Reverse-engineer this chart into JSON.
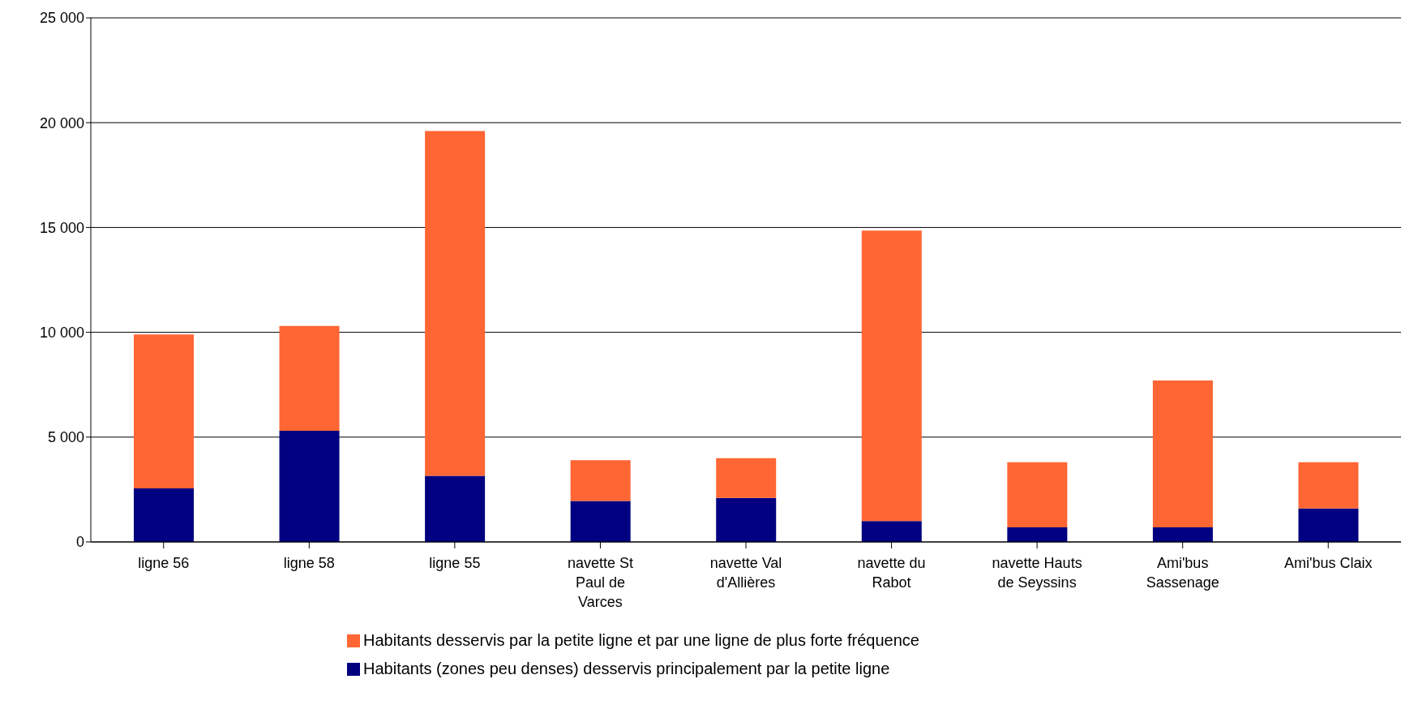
{
  "chart_data": {
    "type": "bar",
    "stacked": true,
    "categories": [
      "ligne 56",
      "ligne 58",
      "ligne 55",
      "navette St Paul de Varces",
      "navette Val d'Allières",
      "navette du Rabot",
      "navette Hauts de Seyssins",
      "Ami'bus Sassenage",
      "Ami'bus Claix"
    ],
    "series": [
      {
        "name": "Habitants (zones peu denses) desservis principalement par la petite ligne",
        "color": "#000080",
        "values": [
          2550,
          5300,
          3150,
          1950,
          2100,
          1000,
          700,
          700,
          1600
        ]
      },
      {
        "name": "Habitants desservis par la petite ligne et par une ligne de plus forte fréquence",
        "color": "#ff6633",
        "values": [
          7350,
          5000,
          16450,
          1950,
          1900,
          13850,
          3100,
          7000,
          2200
        ]
      }
    ],
    "ylim": [
      0,
      25000
    ],
    "yticks": [
      {
        "value": 0,
        "label": "0"
      },
      {
        "value": 5000,
        "label": "5 000"
      },
      {
        "value": 10000,
        "label": "10 000"
      },
      {
        "value": 15000,
        "label": "15 000"
      },
      {
        "value": 20000,
        "label": "20 000"
      },
      {
        "value": 25000,
        "label": "25 000"
      }
    ],
    "grid": "y",
    "legend": "bottom"
  }
}
